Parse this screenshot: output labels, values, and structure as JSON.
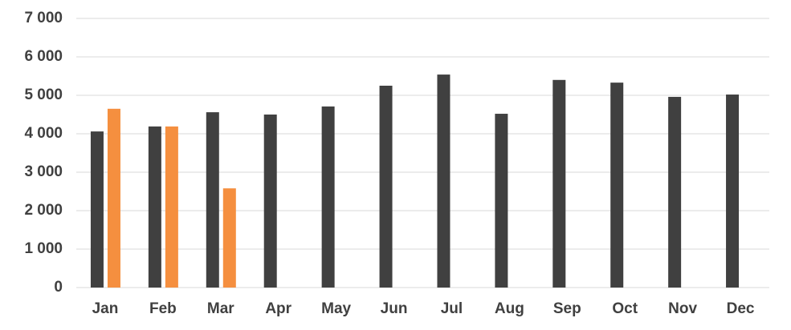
{
  "chart_data": {
    "type": "bar",
    "categories": [
      "Jan",
      "Feb",
      "Mar",
      "Apr",
      "May",
      "Jun",
      "Jul",
      "Aug",
      "Sep",
      "Oct",
      "Nov",
      "Dec"
    ],
    "series": [
      {
        "color": "#404040",
        "values": [
          4060,
          4190,
          4560,
          4500,
          4710,
          5250,
          5540,
          4520,
          5400,
          5330,
          4960,
          5020
        ]
      },
      {
        "color": "#f58f3f",
        "values": [
          4650,
          4190,
          2580,
          null,
          null,
          null,
          null,
          null,
          null,
          null,
          null,
          null
        ]
      }
    ],
    "ylim": [
      0,
      7000
    ],
    "yticks": [
      0,
      {
        "value": 1000,
        "label": "1 000"
      },
      {
        "value": 2000,
        "label": "2 000"
      },
      {
        "value": 3000,
        "label": "3 000"
      },
      {
        "value": 4000,
        "label": "4 000"
      },
      {
        "value": 5000,
        "label": "5 000"
      },
      {
        "value": 6000,
        "label": "6 000"
      },
      {
        "value": 7000,
        "label": "7 000"
      }
    ],
    "grid": true
  }
}
